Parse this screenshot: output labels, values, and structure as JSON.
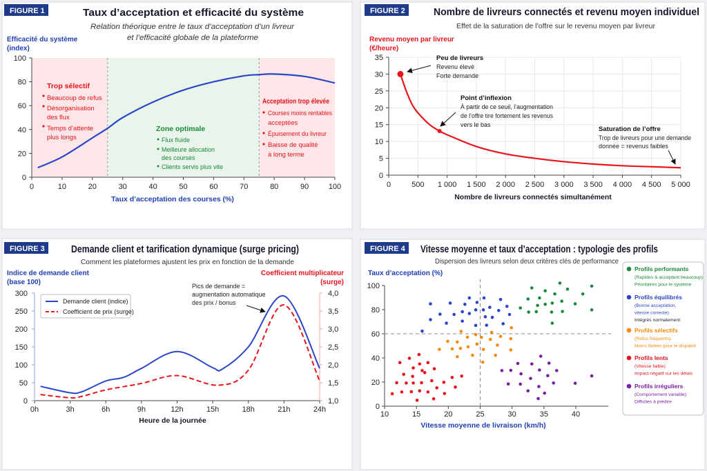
{
  "colors": {
    "blue": "#2a45c8",
    "red": "#e8131b",
    "green": "#1a8a3a",
    "orange": "#f58a0c",
    "purple": "#7a1fa2",
    "badge": "#1e3a8a",
    "zone_red": "#fde6e8",
    "zone_green": "#e9f4ea"
  },
  "figure1": {
    "badge": "FIGURE 1",
    "title": "Taux d’acceptation et efficacité du système",
    "subtitle_1": "Relation théorique entre le taux d’acceptation d’un livreur",
    "subtitle_2": "et l’efficacité globale de la plateforme",
    "ylabel_1": "Efficacité du système",
    "ylabel_2": "(index)",
    "xlabel": "Taux d’acceptation des courses (%)",
    "zone_left": {
      "title": "Trop sélectif",
      "lines": [
        "Beaucoup de refus",
        "Désorganisation",
        "des flux",
        "Temps d’attente",
        "plus longs"
      ]
    },
    "zone_mid": {
      "title": "Zone optimale",
      "lines": [
        "Flux fluide",
        "Meilleure allocation",
        "des courses",
        "Clients servis plus vite"
      ]
    },
    "zone_right": {
      "title": "Acceptation trop élevée",
      "lines": [
        "Courses moins rentables",
        "acceptées",
        "Épuisement du livreur",
        "Baisse de qualité",
        "à long terme"
      ]
    }
  },
  "figure2": {
    "badge": "FIGURE 2",
    "title": "Nombre de livreurs connectés et revenu moyen individuel",
    "subtitle": "Effet de la saturation de l’offre sur le revenu moyen par livreur",
    "ylabel_1": "Revenu moyen par livreur",
    "ylabel_2": "(€/heure)",
    "xlabel": "Nombre de livreurs connectés simultanément",
    "ann1": {
      "title": "Peu de livreurs",
      "lines": [
        "Revenu élevé",
        "Forte demande"
      ]
    },
    "ann2": {
      "title": "Point d’inflexion",
      "lines": [
        "À partir de ce seuil, l’augmentation",
        "de l’offre tire fortement les revenus",
        "vers le bas"
      ]
    },
    "ann3": {
      "title": "Saturation de l’offre",
      "lines": [
        "Trop de livreurs pour une demande",
        "donnée = revenus faibles"
      ]
    }
  },
  "figure3": {
    "badge": "FIGURE 3",
    "title": "Demande client et tarification dynamique (surge pricing)",
    "subtitle": "Comment les plateformes ajustent les prix en fonction de la demande",
    "ylabel_left_1": "Indice de demande client",
    "ylabel_left_2": "(base 100)",
    "ylabel_right_1": "Coefficient multiplicateur",
    "ylabel_right_2": "(surge)",
    "xlabel": "Heure de la journée",
    "legend": [
      "Demande client (indice)",
      "Coefficient de prix (surge)"
    ],
    "annotation": [
      "Pics de demande =",
      "augmentation automatique",
      "des prix / bonus"
    ]
  },
  "figure4": {
    "badge": "FIGURE 4",
    "title": "Vitesse moyenne et taux d’acceptation : typologie des profils",
    "subtitle": "Dispersion des livreurs selon deux critères clés de performance",
    "ylabel": "Taux d’acceptation (%)",
    "xlabel": "Vitesse moyenne de livraison (km/h)",
    "legend": [
      {
        "title": "Profils performants",
        "lines": [
          "(Rapides & acceptent beaucoup)",
          "Prioritaires pour le système"
        ]
      },
      {
        "title": "Profils équilibrés",
        "lines": [
          "(Bonne acceptation,",
          "vitesse correcte)",
          "Intégrés normalement"
        ]
      },
      {
        "title": "Profils sélectifs",
        "lines": [
          "(Refus fréquents)",
          "Moins fiables pour le dispatch"
        ]
      },
      {
        "title": "Profils lents",
        "lines": [
          "(Vitesse faible)",
          "Impact négatif sur les délais"
        ]
      },
      {
        "title": "Profils irréguliers",
        "lines": [
          "(Comportement variable)",
          "Difficiles à prédire"
        ]
      }
    ]
  },
  "chart_data": [
    {
      "type": "line",
      "xlim": [
        0,
        100
      ],
      "ylim": [
        0,
        100
      ],
      "xticks": [
        0,
        10,
        20,
        30,
        40,
        50,
        60,
        70,
        80,
        90,
        100
      ],
      "yticks": [
        0,
        20,
        40,
        60,
        80,
        100
      ],
      "zones": [
        {
          "from": 0,
          "to": 25,
          "color": "zone_red"
        },
        {
          "from": 25,
          "to": 75,
          "color": "zone_green"
        },
        {
          "from": 75,
          "to": 100,
          "color": "zone_red"
        }
      ],
      "series": [
        {
          "color": "blue",
          "x": [
            2,
            10,
            20,
            25,
            30,
            40,
            50,
            60,
            70,
            75,
            80,
            90,
            100
          ],
          "y": [
            8,
            17,
            33,
            41,
            50,
            63,
            73,
            80,
            85,
            86,
            86.5,
            84.5,
            79
          ]
        }
      ]
    },
    {
      "type": "line",
      "xlim": [
        0,
        5000
      ],
      "ylim": [
        0,
        35
      ],
      "xticks": [
        "0",
        "500",
        "1 000",
        "1 500",
        "2 000",
        "2 500",
        "3 000",
        "3 500",
        "4 000",
        "4 500",
        "5 000"
      ],
      "yticks": [
        0,
        5,
        10,
        15,
        20,
        25,
        30,
        35
      ],
      "grid": true,
      "series": [
        {
          "color": "red",
          "x": [
            200,
            300,
            400,
            500,
            700,
            870,
            1000,
            1500,
            2000,
            2500,
            3000,
            3500,
            4000,
            4500,
            5000
          ],
          "y": [
            30,
            25,
            21,
            18.5,
            15,
            13.1,
            12,
            8.5,
            6.3,
            5,
            4,
            3.3,
            2.8,
            2.5,
            2.2
          ]
        }
      ],
      "highlights": [
        {
          "x": 200,
          "y": 30
        },
        {
          "x": 870,
          "y": 13.1
        }
      ]
    },
    {
      "type": "line",
      "xlim": [
        0,
        24
      ],
      "ylim": [
        0,
        300
      ],
      "y2lim": [
        1.0,
        4.0
      ],
      "xticks": [
        "0h",
        "3h",
        "6h",
        "9h",
        "12h",
        "15h",
        "18h",
        "21h",
        "24h"
      ],
      "yticks": [
        0,
        50,
        100,
        150,
        200,
        250,
        300
      ],
      "y2ticks": [
        "1,0",
        "1,5",
        "2,0",
        "2,5",
        "3,0",
        "3,5",
        "4,0"
      ],
      "legend_position": "top-left",
      "series": [
        {
          "name": "Demande client (indice)",
          "axis": "left",
          "color": "blue",
          "style": "solid",
          "x": [
            0.5,
            3,
            4,
            6,
            7.5,
            9,
            12,
            15,
            15.8,
            18,
            21,
            24
          ],
          "y": [
            40,
            22,
            25,
            55,
            65,
            90,
            137,
            92,
            88,
            150,
            292,
            90
          ]
        },
        {
          "name": "Coefficient de prix (surge)",
          "axis": "right",
          "color": "red",
          "style": "dashed",
          "x": [
            0.5,
            3,
            4,
            6,
            9,
            12,
            15.5,
            18,
            21,
            24
          ],
          "y": [
            1.17,
            1.08,
            1.12,
            1.3,
            1.48,
            1.7,
            1.43,
            1.85,
            3.67,
            1.55
          ]
        }
      ]
    },
    {
      "type": "scatter",
      "xlim": [
        10,
        45
      ],
      "ylim": [
        0,
        100
      ],
      "xticks": [
        10,
        15,
        20,
        25,
        30,
        35,
        40
      ],
      "yticks": [
        0,
        20,
        40,
        60,
        80,
        100
      ],
      "reference_lines": {
        "x": 25,
        "y": 60
      },
      "legend_position": "right",
      "series": [
        {
          "name": "Profils performants",
          "color": "green",
          "points": [
            [
              33.1,
              98
            ],
            [
              37.5,
              102
            ],
            [
              38.7,
              97
            ],
            [
              42.5,
              99.5
            ],
            [
              35.2,
              95.6
            ],
            [
              36.7,
              93
            ],
            [
              41.1,
              93
            ],
            [
              32.5,
              88.8
            ],
            [
              34.3,
              89.7
            ],
            [
              37.8,
              87
            ],
            [
              36.3,
              85.4
            ],
            [
              35.2,
              84.4
            ],
            [
              39.9,
              84.8
            ],
            [
              34,
              83.5
            ],
            [
              31.3,
              81.4
            ],
            [
              42.5,
              79.8
            ],
            [
              32.6,
              78
            ],
            [
              33.8,
              78.3
            ],
            [
              36.2,
              78
            ],
            [
              37.9,
              78.5
            ],
            [
              36.3,
              68.8
            ]
          ]
        },
        {
          "name": "Profils équilibrés",
          "color": "blue",
          "points": [
            [
              17.2,
              84.8
            ],
            [
              20.3,
              85.4
            ],
            [
              23.3,
              89.7
            ],
            [
              25.6,
              89.7
            ],
            [
              28.2,
              88.4
            ],
            [
              22.6,
              84.4
            ],
            [
              24.5,
              86
            ],
            [
              18.7,
              76.2
            ],
            [
              20.9,
              76
            ],
            [
              22.2,
              78.3
            ],
            [
              23.3,
              76.8
            ],
            [
              24.3,
              79.8
            ],
            [
              25.5,
              79.8
            ],
            [
              26.5,
              81.9
            ],
            [
              27.9,
              79.3
            ],
            [
              29.2,
              82.7
            ],
            [
              29.6,
              76
            ],
            [
              17.2,
              71.7
            ],
            [
              19.7,
              68.8
            ],
            [
              22.2,
              70.5
            ],
            [
              25.8,
              74.1
            ],
            [
              26.9,
              73.6
            ],
            [
              24.3,
              66.9
            ],
            [
              26,
              67.1
            ],
            [
              28.6,
              68.3
            ],
            [
              15.9,
              62.2
            ]
          ]
        },
        {
          "name": "Profils sélectifs",
          "color": "orange",
          "points": [
            [
              22,
              62
            ],
            [
              26.8,
              61.2
            ],
            [
              29.9,
              65
            ],
            [
              24.3,
              59.3
            ],
            [
              23,
              57.2
            ],
            [
              25.2,
              57
            ],
            [
              28.2,
              57.8
            ],
            [
              29.8,
              55.9
            ],
            [
              26.6,
              55.3
            ],
            [
              19.9,
              53.8
            ],
            [
              21.4,
              53.2
            ],
            [
              24.5,
              51.5
            ],
            [
              27.7,
              50.6
            ],
            [
              23.1,
              49.2
            ],
            [
              18.6,
              47.1
            ],
            [
              20.6,
              47.5
            ],
            [
              21.9,
              47.9
            ],
            [
              25.5,
              47
            ],
            [
              29.8,
              46.6
            ],
            [
              21.4,
              41
            ],
            [
              23.8,
              42.2
            ],
            [
              27.4,
              42.2
            ],
            [
              25.4,
              36.5
            ]
          ]
        },
        {
          "name": "Profils lents",
          "color": "red",
          "points": [
            [
              15.4,
              42.8
            ],
            [
              13.9,
              39.7
            ],
            [
              12.4,
              36.1
            ],
            [
              15.5,
              35
            ],
            [
              16.8,
              36.1
            ],
            [
              14.5,
              31.7
            ],
            [
              15.9,
              29.5
            ],
            [
              17.8,
              31
            ],
            [
              16.3,
              27.8
            ],
            [
              13,
              26.4
            ],
            [
              14.4,
              24.7
            ],
            [
              22.1,
              24.9
            ],
            [
              20.6,
              23.8
            ],
            [
              17.4,
              21.1
            ],
            [
              11.9,
              19.4
            ],
            [
              13.4,
              19.2
            ],
            [
              14.5,
              19.2
            ],
            [
              15.8,
              19.4
            ],
            [
              19.3,
              19.8
            ],
            [
              18.2,
              15.2
            ],
            [
              21.1,
              15.8
            ],
            [
              11.2,
              10.3
            ],
            [
              12.7,
              11.8
            ],
            [
              14.2,
              12
            ],
            [
              15.5,
              12.7
            ],
            [
              16.8,
              11.8
            ],
            [
              19.4,
              10.5
            ],
            [
              15.1,
              4.9
            ],
            [
              17.7,
              6.1
            ]
          ]
        },
        {
          "name": "Profils irréguliers",
          "color": "purple",
          "points": [
            [
              34.5,
              41.4
            ],
            [
              30.9,
              35.4
            ],
            [
              33.1,
              35
            ],
            [
              35.8,
              35.7
            ],
            [
              28.4,
              29.5
            ],
            [
              29.8,
              29.7
            ],
            [
              34.3,
              30
            ],
            [
              37,
              29.5
            ],
            [
              31.4,
              26.8
            ],
            [
              35.6,
              25.3
            ],
            [
              42.5,
              25.1
            ],
            [
              32.9,
              23
            ],
            [
              29.4,
              18.4
            ],
            [
              31.3,
              18.3
            ],
            [
              36.5,
              19.2
            ],
            [
              39.9,
              19
            ],
            [
              34.2,
              16.3
            ],
            [
              32.5,
              12.7
            ],
            [
              35.1,
              10.8
            ],
            [
              34.1,
              6.3
            ]
          ]
        }
      ]
    }
  ]
}
